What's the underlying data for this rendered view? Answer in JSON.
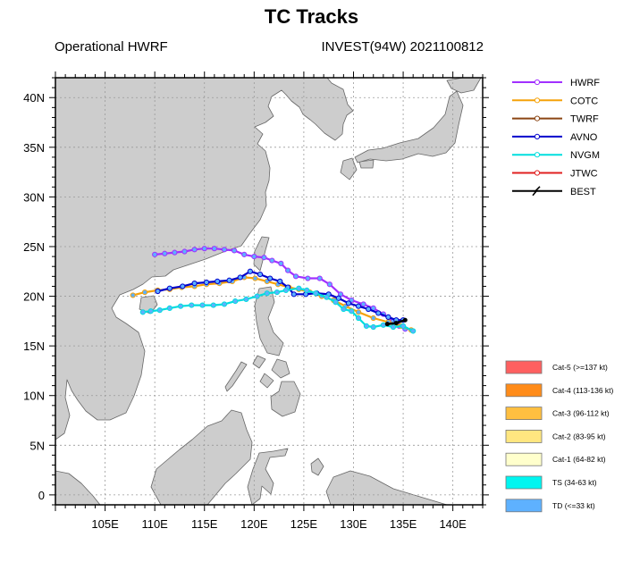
{
  "header": {
    "title": "TC Tracks",
    "left": "Operational HWRF",
    "right": "INVEST(94W) 2021100812"
  },
  "axes": {
    "x_ticks": [
      "105E",
      "110E",
      "115E",
      "120E",
      "125E",
      "130E",
      "135E",
      "140E"
    ],
    "y_ticks": [
      "40N",
      "35N",
      "30N",
      "25N",
      "20N",
      "15N",
      "10N",
      "5N",
      "0"
    ],
    "lon_range": [
      100,
      143
    ],
    "lat_range": [
      -1,
      42
    ],
    "grid": true
  },
  "colors": {
    "ocean": "#ffffff",
    "land": "#cdcdcd",
    "coast": "#666666",
    "grid": "#9a9a9a"
  },
  "model_legend": [
    {
      "name": "HWRF",
      "color": "#a130ff"
    },
    {
      "name": "COTC",
      "color": "#f5a20a"
    },
    {
      "name": "TWRF",
      "color": "#8b4513"
    },
    {
      "name": "AVNO",
      "color": "#0000cc"
    },
    {
      "name": "NVGM",
      "color": "#00dede"
    },
    {
      "name": "JTWC",
      "color": "#e02020"
    },
    {
      "name": "BEST",
      "color": "#000000"
    }
  ],
  "intensity_legend": [
    {
      "label": "Cat-5 (>=137 kt)",
      "color": "#ff6060"
    },
    {
      "label": "Cat-4 (113-136 kt)",
      "color": "#ff8c1a"
    },
    {
      "label": "Cat-3 (96-112 kt)",
      "color": "#ffbf40"
    },
    {
      "label": "Cat-2 (83-95 kt)",
      "color": "#ffe680"
    },
    {
      "label": "Cat-1 (64-82 kt)",
      "color": "#ffffcc"
    },
    {
      "label": "TS (34-63 kt)",
      "color": "#00f5f0"
    },
    {
      "label": "TD (<=33 kt)",
      "color": "#5eb1ff"
    }
  ],
  "chart_data": {
    "type": "line",
    "x_unit": "degrees longitude",
    "y_unit": "degrees latitude",
    "series": [
      {
        "name": "HWRF",
        "points": [
          [
            135.2,
            16.7
          ],
          [
            134.6,
            17.0
          ],
          [
            134.0,
            17.5
          ],
          [
            133.0,
            18.2
          ],
          [
            132.0,
            18.8
          ],
          [
            131.0,
            19.2
          ],
          [
            129.8,
            19.6
          ],
          [
            128.7,
            20.2
          ],
          [
            127.6,
            21.2
          ],
          [
            126.6,
            21.8
          ],
          [
            125.4,
            21.8
          ],
          [
            124.2,
            22.0
          ],
          [
            123.4,
            22.6
          ],
          [
            122.7,
            23.3
          ],
          [
            121.8,
            23.6
          ],
          [
            121.0,
            23.9
          ],
          [
            120.0,
            24.0
          ],
          [
            119.0,
            24.2
          ],
          [
            118.0,
            24.6
          ],
          [
            117.0,
            24.7
          ],
          [
            116.0,
            24.8
          ],
          [
            115.0,
            24.8
          ],
          [
            114.0,
            24.7
          ],
          [
            113.0,
            24.5
          ],
          [
            112.0,
            24.4
          ],
          [
            111.0,
            24.3
          ],
          [
            110.0,
            24.2
          ]
        ]
      },
      {
        "name": "COTC",
        "points": [
          [
            135.8,
            16.6
          ],
          [
            134.8,
            17.0
          ],
          [
            133.5,
            17.4
          ],
          [
            132.0,
            17.8
          ],
          [
            130.5,
            18.4
          ],
          [
            129.2,
            19.0
          ],
          [
            128.0,
            19.6
          ],
          [
            126.8,
            20.0
          ],
          [
            125.6,
            20.4
          ],
          [
            124.5,
            20.7
          ],
          [
            123.5,
            20.9
          ],
          [
            122.4,
            21.2
          ],
          [
            121.3,
            21.5
          ],
          [
            120.1,
            21.8
          ],
          [
            119.0,
            21.9
          ],
          [
            117.8,
            21.5
          ],
          [
            116.5,
            21.3
          ],
          [
            115.2,
            21.2
          ],
          [
            114.0,
            21.0
          ],
          [
            112.7,
            20.9
          ],
          [
            111.5,
            20.7
          ],
          [
            110.3,
            20.6
          ],
          [
            109.0,
            20.4
          ],
          [
            107.8,
            20.1
          ]
        ]
      },
      {
        "name": "AVNO",
        "points": [
          [
            135.0,
            17.6
          ],
          [
            134.3,
            17.6
          ],
          [
            133.5,
            17.9
          ],
          [
            132.5,
            18.3
          ],
          [
            131.5,
            18.7
          ],
          [
            130.5,
            19.0
          ],
          [
            129.5,
            19.3
          ],
          [
            128.5,
            19.8
          ],
          [
            127.5,
            20.2
          ],
          [
            126.3,
            20.3
          ],
          [
            125.2,
            20.2
          ],
          [
            124.0,
            20.2
          ],
          [
            123.4,
            20.9
          ],
          [
            122.6,
            21.5
          ],
          [
            121.6,
            21.8
          ],
          [
            120.6,
            22.2
          ],
          [
            119.6,
            22.5
          ],
          [
            118.6,
            21.9
          ],
          [
            117.5,
            21.6
          ],
          [
            116.3,
            21.5
          ],
          [
            115.2,
            21.4
          ],
          [
            114.0,
            21.3
          ],
          [
            112.8,
            21.0
          ],
          [
            111.5,
            20.8
          ],
          [
            110.3,
            20.5
          ]
        ]
      },
      {
        "name": "NVGM",
        "points": [
          [
            136.0,
            16.5
          ],
          [
            135.0,
            17.0
          ],
          [
            134.0,
            16.9
          ],
          [
            133.0,
            17.1
          ],
          [
            132.0,
            16.9
          ],
          [
            131.3,
            17.0
          ],
          [
            130.5,
            17.8
          ],
          [
            129.8,
            18.5
          ],
          [
            129.0,
            18.7
          ],
          [
            128.2,
            19.4
          ],
          [
            127.3,
            19.9
          ],
          [
            126.2,
            20.3
          ],
          [
            125.3,
            20.6
          ],
          [
            124.5,
            20.8
          ],
          [
            123.2,
            20.6
          ],
          [
            122.3,
            20.4
          ],
          [
            121.3,
            20.3
          ],
          [
            120.3,
            20.0
          ],
          [
            119.2,
            19.7
          ],
          [
            118.1,
            19.5
          ],
          [
            117.0,
            19.2
          ],
          [
            115.9,
            19.1
          ],
          [
            114.8,
            19.1
          ],
          [
            113.7,
            19.1
          ],
          [
            112.6,
            19.0
          ],
          [
            111.5,
            18.8
          ],
          [
            110.5,
            18.6
          ],
          [
            109.6,
            18.5
          ],
          [
            108.8,
            18.4
          ]
        ]
      },
      {
        "name": "BEST",
        "points": [
          [
            135.2,
            17.6
          ],
          [
            134.3,
            17.3
          ],
          [
            133.4,
            17.2
          ]
        ]
      }
    ]
  }
}
